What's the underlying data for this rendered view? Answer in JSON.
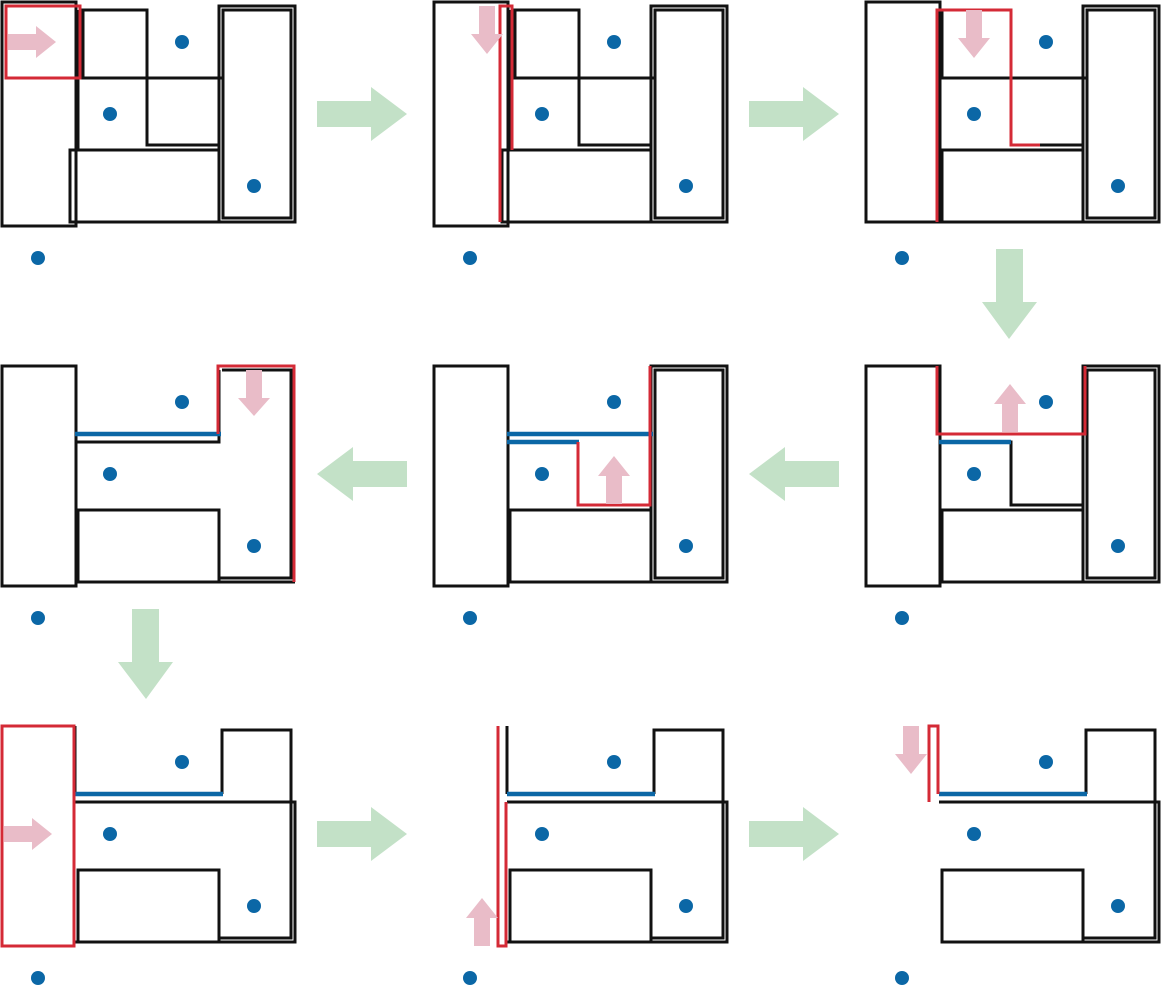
{
  "colors": {
    "outline": "#111111",
    "highlight_red": "#d42a36",
    "merged_edge_blue": "#0b67a6",
    "point_blue": "#0b67a6",
    "flow_arrow_green": "#c3e1c7",
    "move_arrow_pink": "#e9bcc8"
  },
  "grid": {
    "rows": 3,
    "columns": 3
  },
  "flow": [
    "right",
    "right",
    "down",
    "left",
    "left",
    "down",
    "right",
    "right"
  ],
  "icons": {
    "flow_arrow": "green-block-arrow-icon",
    "move_arrow": "pink-block-arrow-icon",
    "point": "blue-dot-icon"
  },
  "steps": [
    {
      "index": 1,
      "move_direction": "right"
    },
    {
      "index": 2,
      "move_direction": "down"
    },
    {
      "index": 3,
      "move_direction": "down"
    },
    {
      "index": 4,
      "move_direction": "up"
    },
    {
      "index": 5,
      "move_direction": "up"
    },
    {
      "index": 6,
      "move_direction": "down"
    },
    {
      "index": 7,
      "move_direction": "right"
    },
    {
      "index": 8,
      "move_direction": "up"
    },
    {
      "index": 9,
      "move_direction": "down"
    }
  ]
}
